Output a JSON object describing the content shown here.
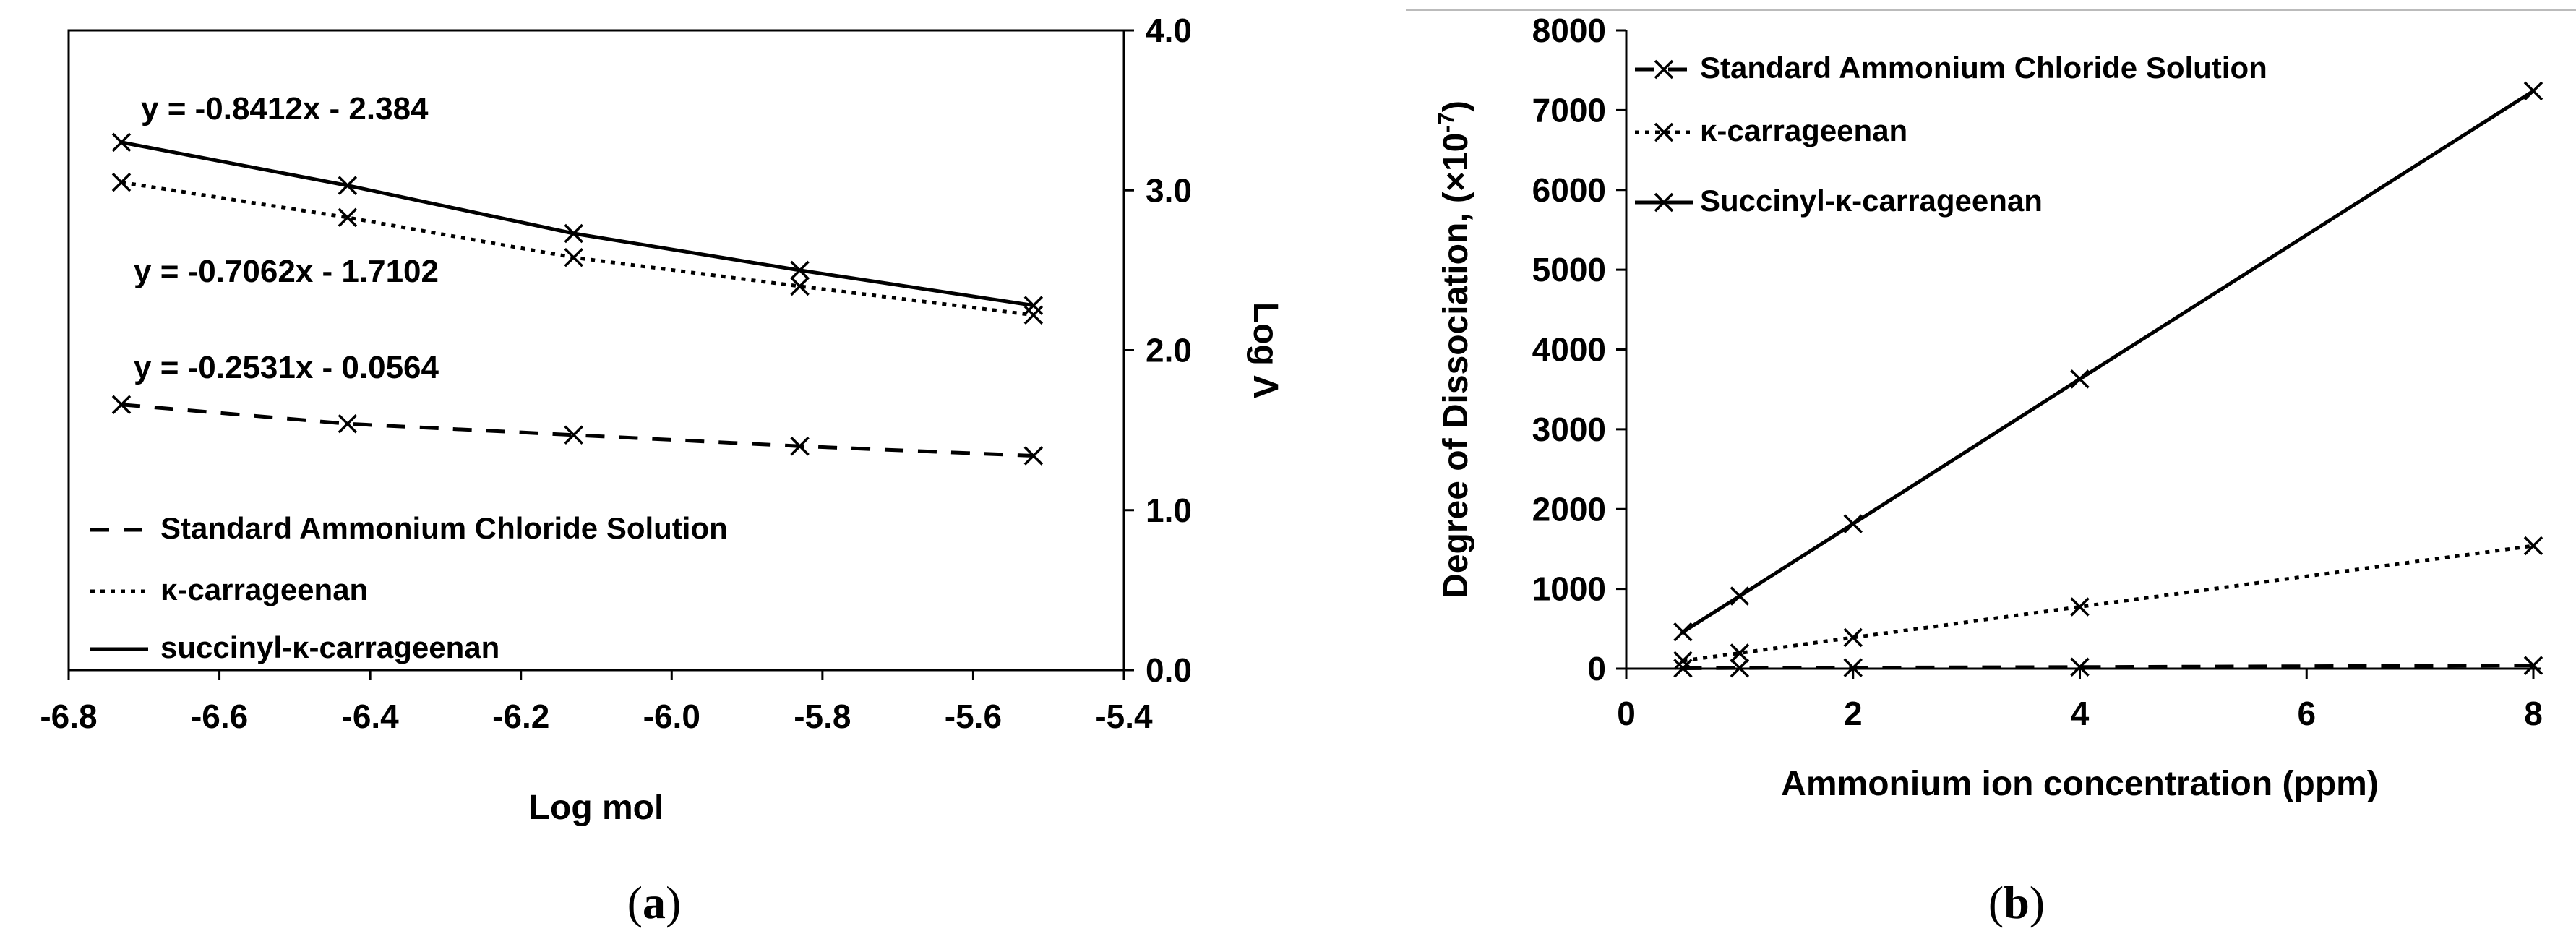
{
  "panels": {
    "a": {
      "caption_open": "(",
      "caption_letter": "a",
      "caption_close": ")"
    },
    "b": {
      "caption_open": "(",
      "caption_letter": "b",
      "caption_close": ")"
    }
  },
  "chart_data": [
    {
      "id": "a",
      "type": "line",
      "title": "",
      "xlabel": "Log mol",
      "ylabel": "Log Λ",
      "xlim": [
        -6.8,
        -5.4
      ],
      "ylim": [
        0.0,
        4.0
      ],
      "xticks": [
        "-6.8",
        "-6.6",
        "-6.4",
        "-6.2",
        "-6.0",
        "-5.8",
        "-5.6",
        "-5.4"
      ],
      "yticks": [
        "0.0",
        "1.0",
        "2.0",
        "3.0",
        "4.0"
      ],
      "x": [
        -6.73,
        -6.43,
        -6.13,
        -5.83,
        -5.52
      ],
      "series": [
        {
          "name": "Standard Ammonium Chloride Solution",
          "style": "dashed",
          "values": [
            1.66,
            1.54,
            1.47,
            1.4,
            1.34
          ]
        },
        {
          "name": "κ-carrageenan",
          "style": "dotted",
          "values": [
            3.05,
            2.83,
            2.58,
            2.4,
            2.22
          ]
        },
        {
          "name": "succinyl-κ-carrageenan",
          "style": "solid",
          "values": [
            3.3,
            3.03,
            2.73,
            2.5,
            2.28
          ]
        }
      ],
      "equations": [
        "y = -0.8412x - 2.384",
        "y = -0.7062x - 1.7102",
        "y = -0.2531x - 0.0564"
      ]
    },
    {
      "id": "b",
      "type": "line",
      "title": "",
      "xlabel": "Ammonium ion concentration (ppm)",
      "ylabel": "Degree of Dissociation, (×10",
      "ylabel_sup": "-7",
      "ylabel_close": ")",
      "xlim": [
        0,
        8
      ],
      "ylim": [
        0,
        8000
      ],
      "xticks": [
        "0",
        "2",
        "4",
        "6",
        "8"
      ],
      "yticks": [
        "0",
        "1000",
        "2000",
        "3000",
        "4000",
        "5000",
        "6000",
        "7000",
        "8000"
      ],
      "x": [
        0.5,
        1,
        2,
        4,
        8
      ],
      "series": [
        {
          "name": "Standard Ammonium Chloride Solution",
          "style": "dashed",
          "values": [
            5,
            8,
            12,
            20,
            40
          ]
        },
        {
          "name": "κ-carrageenan",
          "style": "dotted",
          "values": [
            100,
            195,
            390,
            775,
            1540
          ]
        },
        {
          "name": "Succinyl-κ-carrageenan",
          "style": "solid",
          "values": [
            460,
            910,
            1815,
            3630,
            7240
          ]
        }
      ]
    }
  ]
}
